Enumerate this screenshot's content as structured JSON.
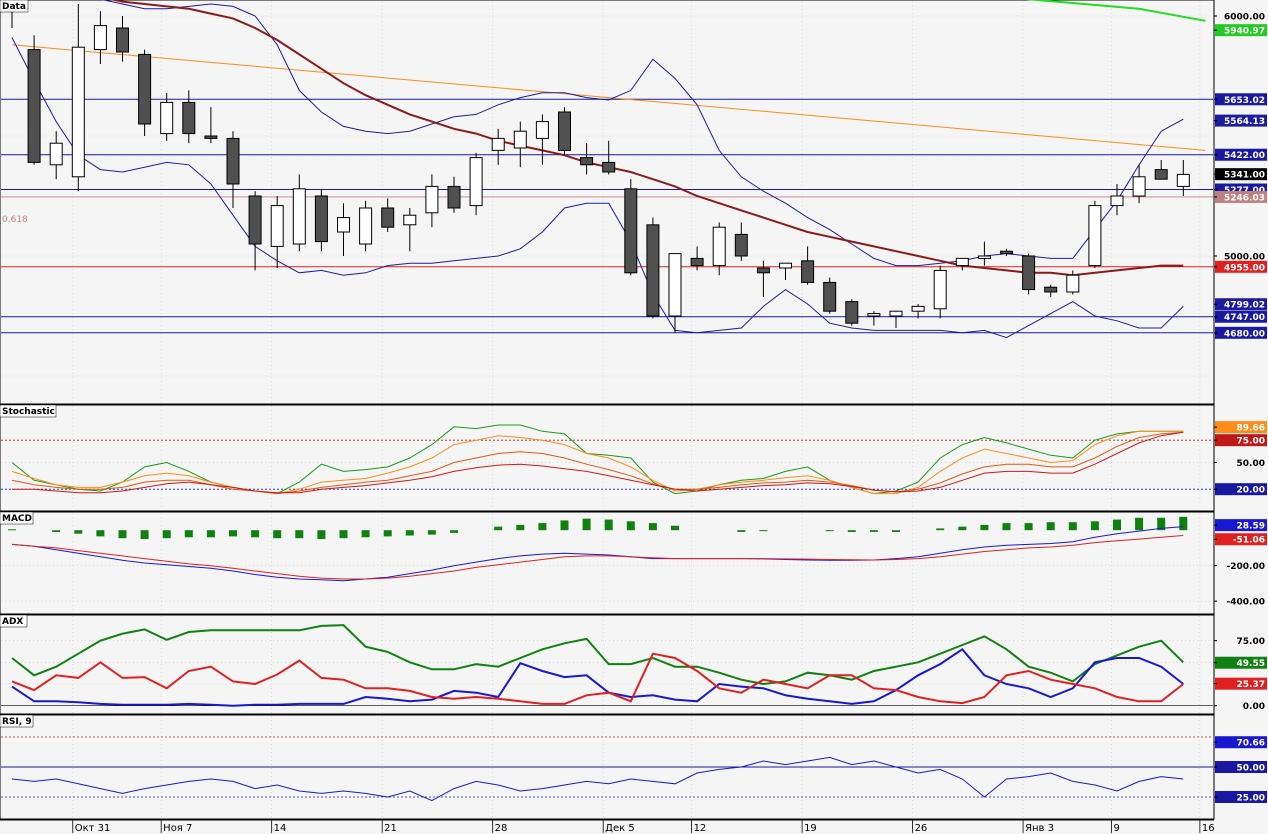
{
  "colors": {
    "background": "#f5f5f5",
    "grid": "#c8c8c8",
    "candle_up": "#ffffff",
    "candle_down": "#505050",
    "bollinger": "#1c1c9c",
    "ma_long": "#8b1a1a",
    "ma_green": "#22dd22",
    "trend_orange": "#ff8c1a",
    "level_blue": "#1818a0",
    "level_red": "#e02020",
    "fib": "#c08080"
  },
  "chart_data": [
    {
      "type": "candlestick",
      "title": "Data",
      "fib_label": "0.618",
      "ylim": [
        4400,
        6050
      ],
      "dates": [
        "Окт 31",
        "Ноя 7",
        "14",
        "21",
        "28",
        "Дек 5",
        "12",
        "19",
        "26",
        "Янв 3",
        "9",
        "16"
      ],
      "candles": [
        [
          6120,
          6130,
          5950,
          6020
        ],
        [
          5860,
          5920,
          5380,
          5390
        ],
        [
          5380,
          5520,
          5320,
          5470
        ],
        [
          5330,
          6050,
          5270,
          5870
        ],
        [
          5860,
          6020,
          5800,
          5960
        ],
        [
          5950,
          6000,
          5810,
          5850
        ],
        [
          5840,
          5860,
          5500,
          5550
        ],
        [
          5510,
          5680,
          5480,
          5640
        ],
        [
          5640,
          5690,
          5470,
          5510
        ],
        [
          5500,
          5620,
          5470,
          5490
        ],
        [
          5490,
          5520,
          5200,
          5300
        ],
        [
          5250,
          5270,
          4940,
          5050
        ],
        [
          5040,
          5250,
          4950,
          5210
        ],
        [
          5050,
          5340,
          5020,
          5280
        ],
        [
          5250,
          5280,
          5020,
          5060
        ],
        [
          5100,
          5220,
          5000,
          5160
        ],
        [
          5050,
          5230,
          5020,
          5200
        ],
        [
          5200,
          5240,
          5100,
          5120
        ],
        [
          5130,
          5200,
          5020,
          5170
        ],
        [
          5180,
          5340,
          5120,
          5290
        ],
        [
          5290,
          5330,
          5180,
          5200
        ],
        [
          5210,
          5430,
          5170,
          5410
        ],
        [
          5440,
          5530,
          5380,
          5490
        ],
        [
          5450,
          5560,
          5370,
          5520
        ],
        [
          5490,
          5590,
          5380,
          5560
        ],
        [
          5600,
          5620,
          5420,
          5440
        ],
        [
          5410,
          5470,
          5340,
          5380
        ],
        [
          5390,
          5480,
          5340,
          5350
        ],
        [
          5280,
          5320,
          4920,
          4930
        ],
        [
          5130,
          5160,
          4740,
          4750
        ],
        [
          4750,
          5010,
          4680,
          5010
        ],
        [
          4990,
          5040,
          4940,
          4960
        ],
        [
          4960,
          5140,
          4920,
          5120
        ],
        [
          5090,
          5140,
          4980,
          5000
        ],
        [
          4950,
          4980,
          4830,
          4930
        ],
        [
          4950,
          4960,
          4900,
          4970
        ],
        [
          4980,
          5040,
          4880,
          4890
        ],
        [
          4890,
          4910,
          4760,
          4770
        ],
        [
          4810,
          4820,
          4710,
          4720
        ],
        [
          4750,
          4770,
          4710,
          4760
        ],
        [
          4750,
          4770,
          4700,
          4770
        ],
        [
          4770,
          4800,
          4740,
          4790
        ],
        [
          4780,
          4960,
          4740,
          4940
        ],
        [
          4960,
          4990,
          4940,
          4990
        ],
        [
          4990,
          5060,
          4960,
          5000
        ],
        [
          5020,
          5030,
          5000,
          5010
        ],
        [
          5000,
          5010,
          4840,
          4860
        ],
        [
          4870,
          4880,
          4830,
          4850
        ],
        [
          4850,
          4940,
          4840,
          4920
        ],
        [
          4960,
          5230,
          4950,
          5210
        ],
        [
          5210,
          5300,
          5170,
          5250
        ],
        [
          5250,
          5380,
          5220,
          5330
        ],
        [
          5360,
          5400,
          5320,
          5320
        ],
        [
          5290,
          5400,
          5250,
          5340
        ]
      ],
      "bollinger_upper": [
        6120,
        6110,
        6090,
        6080,
        6070,
        6050,
        6030,
        6030,
        6040,
        6050,
        6040,
        6000,
        5880,
        5690,
        5600,
        5540,
        5520,
        5510,
        5520,
        5550,
        5580,
        5590,
        5630,
        5660,
        5680,
        5680,
        5660,
        5650,
        5690,
        5820,
        5740,
        5630,
        5440,
        5330,
        5270,
        5220,
        5160,
        5110,
        5050,
        4990,
        4960,
        4960,
        4970,
        4980,
        5000,
        5010,
        5000,
        4990,
        4990,
        5110,
        5230,
        5380,
        5520,
        5570
      ],
      "bollinger_lower": [
        5910,
        5730,
        5560,
        5420,
        5360,
        5350,
        5370,
        5390,
        5380,
        5300,
        5170,
        5040,
        4980,
        4930,
        4940,
        4920,
        4930,
        4960,
        4970,
        4970,
        4980,
        4990,
        5000,
        5030,
        5100,
        5200,
        5220,
        5220,
        5060,
        4840,
        4690,
        4680,
        4690,
        4700,
        4790,
        4860,
        4800,
        4720,
        4700,
        4690,
        4690,
        4690,
        4690,
        4680,
        4690,
        4660,
        4710,
        4760,
        4810,
        4750,
        4730,
        4700,
        4700,
        4790
      ],
      "ma_long": [
        6160,
        6140,
        6120,
        6100,
        6080,
        6060,
        6050,
        6040,
        6030,
        6010,
        5990,
        5950,
        5900,
        5840,
        5780,
        5720,
        5670,
        5630,
        5590,
        5560,
        5530,
        5510,
        5480,
        5460,
        5440,
        5420,
        5390,
        5370,
        5350,
        5320,
        5290,
        5250,
        5220,
        5190,
        5160,
        5130,
        5100,
        5080,
        5060,
        5040,
        5020,
        5000,
        4980,
        4960,
        4950,
        4940,
        4930,
        4930,
        4920,
        4930,
        4940,
        4950,
        4960,
        4960
      ],
      "ma_green": [
        [
          42,
          6100
        ],
        [
          46,
          6070
        ],
        [
          51,
          6030
        ],
        [
          54,
          5980
        ]
      ],
      "trend_orange": [
        [
          0,
          5880
        ],
        [
          54,
          5440
        ]
      ],
      "levels_blue": [
        5653,
        5422,
        5277,
        4747,
        4680
      ],
      "level_red": 4955,
      "fib_level": 5246,
      "tags": [
        {
          "text": "6000.00",
          "value": 6000,
          "bg": "#f5f5f5",
          "fg": "#000000"
        },
        {
          "text": "5940.97",
          "value": 5940.97,
          "bg": "#22cc22",
          "fg": "#ffffff"
        },
        {
          "text": "5653.02",
          "value": 5653.02,
          "bg": "#1818a0",
          "fg": "#ffffff"
        },
        {
          "text": "5564.13",
          "value": 5564.13,
          "bg": "#1c1c9c",
          "fg": "#ffffff"
        },
        {
          "text": "5422.00",
          "value": 5422,
          "bg": "#1818a0",
          "fg": "#ffffff"
        },
        {
          "text": "5341.00",
          "value": 5341,
          "bg": "#000000",
          "fg": "#ffffff"
        },
        {
          "text": "5277.00",
          "value": 5277,
          "bg": "#1818a0",
          "fg": "#ffffff"
        },
        {
          "text": "5246.03",
          "value": 5246.03,
          "bg": "#c08080",
          "fg": "#ffffff"
        },
        {
          "text": "5000.00",
          "value": 5000,
          "bg": "#f5f5f5",
          "fg": "#000000"
        },
        {
          "text": "4955.00",
          "value": 4955,
          "bg": "#e02020",
          "fg": "#ffffff"
        },
        {
          "text": "4799.02",
          "value": 4799.02,
          "bg": "#1c1c9c",
          "fg": "#ffffff"
        },
        {
          "text": "4747.00",
          "value": 4747,
          "bg": "#1818a0",
          "fg": "#ffffff"
        },
        {
          "text": "4680.00",
          "value": 4680,
          "bg": "#1818a0",
          "fg": "#ffffff"
        }
      ]
    },
    {
      "type": "line",
      "title": "Stochastic",
      "ylim": [
        0,
        110
      ],
      "levels": [
        75,
        20
      ],
      "fast": [
        50,
        30,
        25,
        20,
        18,
        28,
        45,
        50,
        40,
        28,
        22,
        18,
        15,
        28,
        48,
        40,
        42,
        45,
        55,
        70,
        90,
        88,
        92,
        92,
        85,
        82,
        60,
        58,
        55,
        28,
        15,
        18,
        25,
        30,
        32,
        40,
        45,
        30,
        22,
        15,
        18,
        28,
        55,
        70,
        78,
        72,
        65,
        58,
        55,
        75,
        82,
        85,
        85,
        85
      ],
      "med": [
        40,
        32,
        25,
        22,
        22,
        28,
        35,
        38,
        35,
        28,
        22,
        18,
        15,
        20,
        28,
        30,
        32,
        38,
        45,
        55,
        70,
        75,
        80,
        78,
        75,
        70,
        60,
        55,
        45,
        30,
        18,
        20,
        25,
        28,
        30,
        33,
        35,
        30,
        22,
        15,
        15,
        22,
        40,
        55,
        65,
        60,
        55,
        50,
        52,
        70,
        80,
        85,
        85,
        85
      ],
      "slow": [
        30,
        25,
        22,
        20,
        20,
        22,
        28,
        30,
        30,
        25,
        20,
        18,
        15,
        18,
        22,
        25,
        28,
        30,
        35,
        40,
        50,
        55,
        60,
        62,
        60,
        55,
        48,
        42,
        35,
        26,
        20,
        20,
        22,
        25,
        27,
        28,
        30,
        28,
        24,
        19,
        17,
        20,
        27,
        37,
        45,
        48,
        48,
        45,
        45,
        55,
        68,
        78,
        82,
        84
      ],
      "k": [
        20,
        20,
        18,
        16,
        16,
        18,
        22,
        26,
        28,
        25,
        22,
        18,
        16,
        16,
        20,
        22,
        24,
        27,
        30,
        34,
        40,
        44,
        47,
        48,
        46,
        43,
        40,
        35,
        30,
        25,
        20,
        18,
        20,
        22,
        24,
        25,
        27,
        26,
        23,
        19,
        17,
        18,
        22,
        30,
        38,
        40,
        40,
        38,
        38,
        48,
        60,
        72,
        80,
        84
      ],
      "tags": [
        {
          "text": "89.66",
          "value": 89.66,
          "bg": "#ff8c1a",
          "fg": "#ffffff"
        },
        {
          "text": "75.00",
          "value": 75,
          "bg": "#c01818",
          "fg": "#ffffff"
        },
        {
          "text": "50.00",
          "value": 50,
          "bg": "#f5f5f5",
          "fg": "#000000"
        },
        {
          "text": "20.00",
          "value": 20,
          "bg": "#1818a0",
          "fg": "#ffffff"
        }
      ]
    },
    {
      "type": "bar",
      "title": "MACD",
      "ylim": [
        -450,
        80
      ],
      "hist": [
        5,
        0,
        -10,
        -20,
        -35,
        -45,
        -50,
        -45,
        -40,
        -40,
        -35,
        -40,
        -45,
        -45,
        -50,
        -45,
        -40,
        -35,
        -30,
        -25,
        -15,
        0,
        20,
        30,
        40,
        55,
        65,
        60,
        50,
        40,
        25,
        0,
        0,
        -10,
        -5,
        0,
        0,
        -5,
        -10,
        -10,
        -10,
        0,
        10,
        20,
        30,
        40,
        40,
        45,
        45,
        50,
        60,
        70,
        70,
        75
      ],
      "macd": [
        -80,
        -90,
        -110,
        -130,
        -150,
        -170,
        -185,
        -195,
        -205,
        -215,
        -230,
        -250,
        -265,
        -275,
        -280,
        -285,
        -275,
        -265,
        -245,
        -225,
        -200,
        -180,
        -160,
        -145,
        -135,
        -130,
        -135,
        -140,
        -150,
        -160,
        -160,
        -160,
        -160,
        -160,
        -162,
        -165,
        -168,
        -170,
        -170,
        -168,
        -160,
        -150,
        -130,
        -110,
        -95,
        -85,
        -80,
        -75,
        -65,
        -40,
        -20,
        -5,
        10,
        20
      ],
      "signal": [
        -80,
        -90,
        -100,
        -115,
        -130,
        -145,
        -160,
        -175,
        -190,
        -200,
        -215,
        -230,
        -245,
        -260,
        -270,
        -275,
        -275,
        -270,
        -260,
        -245,
        -230,
        -210,
        -195,
        -180,
        -165,
        -150,
        -145,
        -145,
        -150,
        -155,
        -160,
        -160,
        -160,
        -160,
        -160,
        -162,
        -163,
        -165,
        -167,
        -168,
        -165,
        -160,
        -150,
        -135,
        -120,
        -110,
        -100,
        -95,
        -85,
        -70,
        -60,
        -50,
        -40,
        -30
      ],
      "tags": [
        {
          "text": "28.59",
          "value": 28.59,
          "bg": "#1818d0",
          "fg": "#ffffff"
        },
        {
          "text": "-51.06",
          "value": -51.06,
          "bg": "#e02020",
          "fg": "#ffffff"
        },
        {
          "text": "-200.00",
          "value": -200,
          "bg": "#f5f5f5",
          "fg": "#000000"
        },
        {
          "text": "-400.00",
          "value": -400,
          "bg": "#f5f5f5",
          "fg": "#000000"
        }
      ]
    },
    {
      "type": "line",
      "title": "ADX",
      "ylim": [
        -5,
        100
      ],
      "adx": [
        55,
        35,
        45,
        60,
        75,
        83,
        88,
        76,
        85,
        87,
        87,
        87,
        87,
        87,
        92,
        93,
        68,
        62,
        50,
        42,
        42,
        48,
        45,
        55,
        65,
        72,
        77,
        48,
        48,
        55,
        45,
        45,
        38,
        30,
        25,
        28,
        38,
        35,
        30,
        40,
        45,
        50,
        60,
        70,
        80,
        65,
        45,
        38,
        28,
        48,
        58,
        68,
        75,
        50
      ],
      "di_plus": [
        22,
        5,
        5,
        4,
        2,
        1,
        1,
        1,
        2,
        1,
        0,
        1,
        1,
        2,
        2,
        2,
        10,
        8,
        5,
        7,
        17,
        15,
        10,
        49,
        40,
        33,
        35,
        15,
        10,
        12,
        7,
        5,
        25,
        22,
        20,
        12,
        8,
        5,
        2,
        5,
        18,
        35,
        48,
        65,
        35,
        25,
        20,
        10,
        20,
        50,
        55,
        55,
        45,
        25
      ],
      "di_minus": [
        28,
        18,
        35,
        32,
        50,
        32,
        33,
        20,
        40,
        45,
        28,
        25,
        36,
        52,
        32,
        30,
        20,
        20,
        17,
        10,
        8,
        10,
        8,
        5,
        2,
        2,
        12,
        15,
        5,
        60,
        55,
        40,
        20,
        15,
        30,
        25,
        20,
        35,
        35,
        20,
        18,
        10,
        5,
        3,
        10,
        35,
        40,
        30,
        25,
        20,
        10,
        5,
        5,
        25
      ],
      "tags": [
        {
          "text": "75.00",
          "value": 75,
          "bg": "#f5f5f5",
          "fg": "#000000"
        },
        {
          "text": "49.55",
          "value": 49.55,
          "bg": "#108010",
          "fg": "#ffffff"
        },
        {
          "text": "25.37",
          "value": 25.37,
          "bg": "#e02020",
          "fg": "#ffffff"
        },
        {
          "text": "0.00",
          "value": 0,
          "bg": "#f5f5f5",
          "fg": "#000000"
        }
      ]
    },
    {
      "type": "line",
      "title": "RSI, 9",
      "ylim": [
        10,
        90
      ],
      "levels": [
        75,
        50,
        25
      ],
      "rsi": [
        40,
        38,
        40,
        36,
        32,
        28,
        32,
        35,
        38,
        40,
        38,
        32,
        35,
        30,
        28,
        30,
        28,
        25,
        30,
        22,
        32,
        38,
        35,
        30,
        32,
        35,
        38,
        36,
        40,
        38,
        36,
        45,
        48,
        50,
        55,
        52,
        55,
        58,
        52,
        55,
        50,
        45,
        48,
        40,
        25,
        40,
        42,
        45,
        38,
        35,
        30,
        38,
        42,
        40
      ],
      "tags": [
        {
          "text": "70.66",
          "value": 70.66,
          "bg": "#1818d0",
          "fg": "#ffffff"
        },
        {
          "text": "50.00",
          "value": 50,
          "bg": "#1818a0",
          "fg": "#ffffff"
        },
        {
          "text": "25.00",
          "value": 25,
          "bg": "#1818a0",
          "fg": "#ffffff"
        }
      ]
    }
  ]
}
